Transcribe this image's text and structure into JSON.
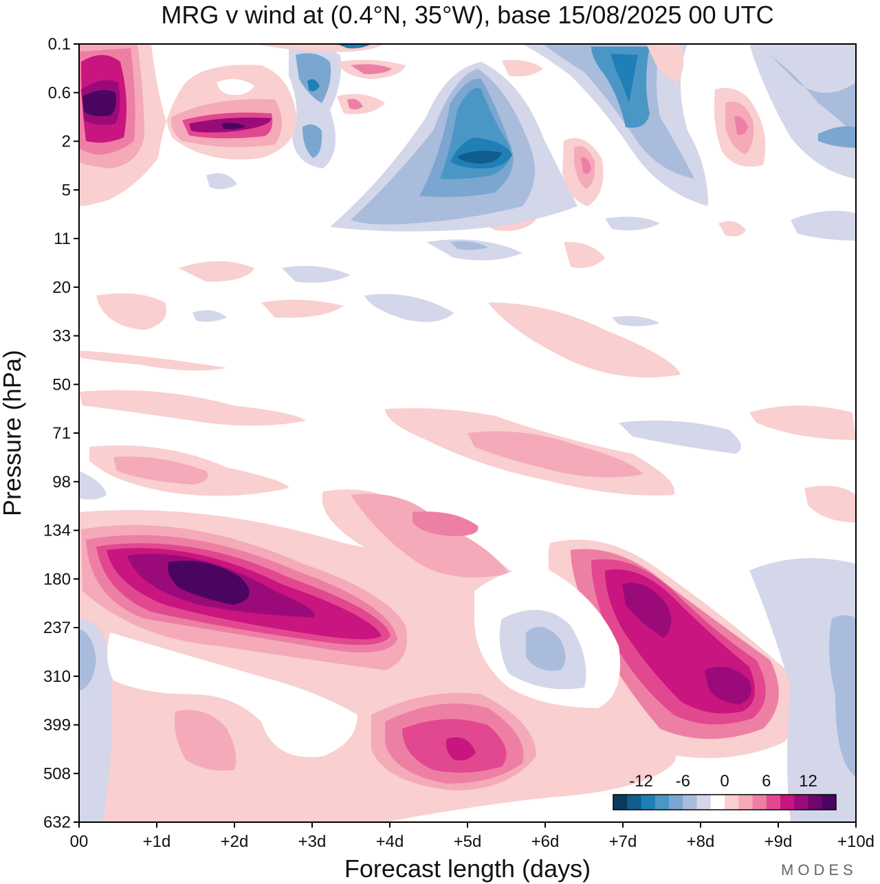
{
  "chart_data": {
    "type": "contour",
    "title": "MRG v wind at (0.4°N, 35°W),  base 15/08/2025  00 UTC",
    "xlabel": "Forecast length (days)",
    "ylabel": "Pressure (hPa)",
    "x_ticks": [
      "00",
      "+1d",
      "+2d",
      "+3d",
      "+4d",
      "+5d",
      "+6d",
      "+7d",
      "+8d",
      "+9d",
      "+10d"
    ],
    "y_ticks": [
      "0.1",
      "0.6",
      "2",
      "5",
      "11",
      "20",
      "33",
      "50",
      "71",
      "98",
      "134",
      "180",
      "237",
      "310",
      "399",
      "508",
      "632"
    ],
    "xlim": [
      0,
      10
    ],
    "y_axis": "pressure, log-like, top to bottom",
    "colorbar": {
      "labels": [
        "-12",
        "-6",
        "0",
        "6",
        "12"
      ],
      "label_values": [
        -12,
        -6,
        0,
        6,
        12
      ],
      "levels": [
        -16,
        -14,
        -12,
        -10,
        -8,
        -6,
        -4,
        -2,
        2,
        4,
        6,
        8,
        10,
        12,
        14,
        16
      ],
      "colors": [
        "#0b3b5c",
        "#0f5e8e",
        "#1f7fb6",
        "#4a97c6",
        "#7aa6d0",
        "#a9bcdc",
        "#d4d6ea",
        "#ffffff",
        "#f9cfd0",
        "#f4aab8",
        "#ee7fa4",
        "#e2488f",
        "#c8157f",
        "#9b0a79",
        "#6d066e",
        "#4a0560"
      ],
      "position": "bottom-right"
    },
    "features": [
      {
        "x": 1.5,
        "level": 180,
        "value": 16,
        "note": "strong positive maximum"
      },
      {
        "x": 0.4,
        "level": 0.8,
        "value": 15,
        "note": "upper-level positive maximum"
      },
      {
        "x": 2.0,
        "level": 1.5,
        "value": 14
      },
      {
        "x": 7.3,
        "level": 210,
        "value": 14
      },
      {
        "x": 8.5,
        "level": 330,
        "value": 12
      },
      {
        "x": 5.0,
        "level": 440,
        "value": 12
      },
      {
        "x": 5.0,
        "level": 3,
        "value": -14,
        "note": "negative minimum"
      },
      {
        "x": 7.0,
        "level": 0.5,
        "value": -12
      },
      {
        "x": 6.1,
        "level": 270,
        "value": -6
      }
    ],
    "brand": "MODES"
  }
}
